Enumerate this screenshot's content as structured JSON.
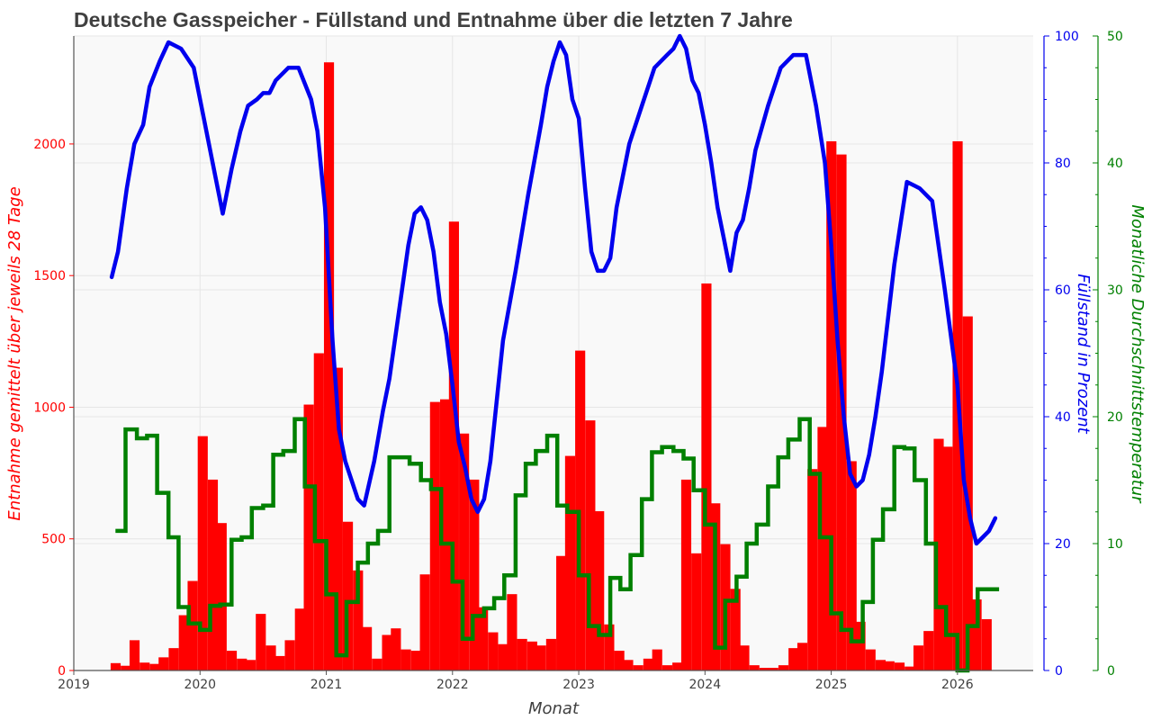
{
  "chart_data": {
    "type": "bar+line",
    "title": "Deutsche Gasspeicher - Füllstand und Entnahme über die letzten 7 Jahre",
    "xlabel": "Monat",
    "ylabel_left": "Entnahme gemittelt über jeweils 28 Tage",
    "ylabel_right1": "Füllstand in Prozent",
    "ylabel_right2": "Monatliche Durchschnittstemperatur",
    "xlim": [
      2019.0,
      2026.6
    ],
    "x_ticks": [
      "2019",
      "2020",
      "2021",
      "2022",
      "2023",
      "2024",
      "2025",
      "2026"
    ],
    "ylim_left": [
      0,
      2410
    ],
    "y_ticks_left": [
      "0",
      "500",
      "1000",
      "1500",
      "2000"
    ],
    "ylim_right1": [
      0,
      100
    ],
    "y_ticks_right1": [
      "0",
      "20",
      "40",
      "60",
      "80",
      "100"
    ],
    "ylim_right2": [
      0,
      50
    ],
    "y_ticks_right2": [
      "0",
      "10",
      "20",
      "30",
      "40",
      "50"
    ],
    "grid": true,
    "colors": {
      "entnahme": "#ff0000",
      "fuellstand": "#0000ee",
      "temperatur": "#008000",
      "plot_bg": "#f9f9f9",
      "title": "#404040"
    },
    "series": [
      {
        "kind": "bar",
        "axis": "left",
        "bar_width_years": 0.0767,
        "x": [
          2019.33,
          2019.41,
          2019.48,
          2019.56,
          2019.64,
          2019.71,
          2019.79,
          2019.87,
          2019.94,
          2020.02,
          2020.1,
          2020.17,
          2020.25,
          2020.33,
          2020.4,
          2020.48,
          2020.56,
          2020.63,
          2020.71,
          2020.79,
          2020.86,
          2020.94,
          2021.02,
          2021.09,
          2021.17,
          2021.25,
          2021.32,
          2021.4,
          2021.48,
          2021.55,
          2021.63,
          2021.71,
          2021.78,
          2021.86,
          2021.94,
          2022.01,
          2022.09,
          2022.17,
          2022.24,
          2022.32,
          2022.4,
          2022.47,
          2022.55,
          2022.63,
          2022.7,
          2022.78,
          2022.86,
          2022.93,
          2023.01,
          2023.09,
          2023.16,
          2023.24,
          2023.32,
          2023.39,
          2023.47,
          2023.55,
          2023.62,
          2023.7,
          2023.78,
          2023.85,
          2023.93,
          2024.01,
          2024.08,
          2024.16,
          2024.24,
          2024.31,
          2024.39,
          2024.47,
          2024.54,
          2024.62,
          2024.7,
          2024.77,
          2024.85,
          2024.93,
          2025.0,
          2025.08,
          2025.16,
          2025.23,
          2025.31,
          2025.39,
          2025.46,
          2025.54,
          2025.62,
          2025.69,
          2025.77,
          2025.85,
          2025.92,
          2026.0,
          2026.08,
          2026.15,
          2026.23
        ],
        "values": [
          28,
          18,
          115,
          30,
          25,
          50,
          85,
          210,
          340,
          890,
          725,
          560,
          75,
          45,
          40,
          215,
          95,
          55,
          115,
          235,
          1010,
          1205,
          2310,
          1150,
          565,
          380,
          165,
          45,
          135,
          160,
          80,
          75,
          365,
          1020,
          1030,
          1705,
          900,
          725,
          240,
          145,
          100,
          290,
          120,
          110,
          95,
          120,
          435,
          815,
          1215,
          950,
          605,
          175,
          75,
          40,
          20,
          45,
          80,
          20,
          30,
          725,
          445,
          1470,
          635,
          480,
          310,
          95,
          20,
          10,
          10,
          20,
          85,
          105,
          765,
          925,
          2010,
          1960,
          795,
          185,
          80,
          40,
          35,
          30,
          15,
          95,
          150,
          880,
          850,
          2010,
          1345,
          270,
          195
        ]
      },
      {
        "kind": "line",
        "name": "Füllstand",
        "axis": "right1",
        "x": [
          2019.3,
          2019.35,
          2019.42,
          2019.48,
          2019.55,
          2019.6,
          2019.68,
          2019.75,
          2019.85,
          2019.95,
          2020.03,
          2020.1,
          2020.18,
          2020.25,
          2020.32,
          2020.38,
          2020.45,
          2020.5,
          2020.55,
          2020.6,
          2020.7,
          2020.78,
          2020.88,
          2020.93,
          2020.99,
          2021.05,
          2021.1,
          2021.15,
          2021.2,
          2021.25,
          2021.3,
          2021.38,
          2021.45,
          2021.5,
          2021.55,
          2021.6,
          2021.65,
          2021.7,
          2021.75,
          2021.8,
          2021.85,
          2021.9,
          2021.95,
          2022.0,
          2022.05,
          2022.1,
          2022.15,
          2022.2,
          2022.25,
          2022.3,
          2022.4,
          2022.5,
          2022.6,
          2022.7,
          2022.75,
          2022.8,
          2022.85,
          2022.9,
          2022.95,
          2023.0,
          2023.05,
          2023.1,
          2023.15,
          2023.2,
          2023.25,
          2023.3,
          2023.4,
          2023.5,
          2023.6,
          2023.7,
          2023.75,
          2023.8,
          2023.85,
          2023.9,
          2023.95,
          2024.0,
          2024.05,
          2024.1,
          2024.15,
          2024.2,
          2024.25,
          2024.3,
          2024.35,
          2024.4,
          2024.5,
          2024.6,
          2024.7,
          2024.8,
          2024.88,
          2024.95,
          2025.0,
          2025.05,
          2025.1,
          2025.15,
          2025.2,
          2025.25,
          2025.3,
          2025.35,
          2025.4,
          2025.5,
          2025.6,
          2025.7,
          2025.8,
          2025.9,
          2026.0,
          2026.05,
          2026.1,
          2026.15,
          2026.2,
          2026.25,
          2026.3
        ],
        "values": [
          62,
          66,
          76,
          83,
          86,
          92,
          96,
          99,
          98,
          95,
          87,
          80,
          72,
          79,
          85,
          89,
          90,
          91,
          91,
          93,
          95,
          95,
          90,
          85,
          73,
          52,
          38,
          33,
          30,
          27,
          26,
          33,
          41,
          46,
          53,
          60,
          67,
          72,
          73,
          71,
          66,
          58,
          53,
          45,
          36,
          32,
          27,
          25,
          27,
          33,
          52,
          63,
          75,
          86,
          92,
          96,
          99,
          97,
          90,
          87,
          76,
          66,
          63,
          63,
          65,
          73,
          83,
          89,
          95,
          97,
          98,
          100,
          98,
          93,
          91,
          86,
          80,
          73,
          68,
          63,
          69,
          71,
          76,
          82,
          89,
          95,
          97,
          97,
          89,
          80,
          67,
          52,
          40,
          31,
          29,
          30,
          34,
          40,
          47,
          64,
          77,
          76,
          74,
          60,
          45,
          30,
          24,
          20,
          21,
          22,
          24
        ]
      },
      {
        "kind": "step",
        "name": "Temperatur",
        "axis": "right2",
        "x": [
          2019.33,
          2019.41,
          2019.5,
          2019.58,
          2019.66,
          2019.75,
          2019.83,
          2019.91,
          2020.0,
          2020.08,
          2020.16,
          2020.25,
          2020.33,
          2020.41,
          2020.5,
          2020.58,
          2020.66,
          2020.75,
          2020.83,
          2020.91,
          2021.0,
          2021.08,
          2021.16,
          2021.25,
          2021.33,
          2021.41,
          2021.5,
          2021.58,
          2021.66,
          2021.75,
          2021.83,
          2021.91,
          2022.0,
          2022.08,
          2022.16,
          2022.25,
          2022.33,
          2022.41,
          2022.5,
          2022.58,
          2022.66,
          2022.75,
          2022.83,
          2022.91,
          2023.0,
          2023.08,
          2023.16,
          2023.25,
          2023.33,
          2023.41,
          2023.5,
          2023.58,
          2023.66,
          2023.75,
          2023.83,
          2023.91,
          2024.0,
          2024.08,
          2024.16,
          2024.25,
          2024.33,
          2024.41,
          2024.5,
          2024.58,
          2024.66,
          2024.75,
          2024.83,
          2024.91,
          2025.0,
          2025.08,
          2025.16,
          2025.25,
          2025.33,
          2025.41,
          2025.5,
          2025.58,
          2025.66,
          2025.75,
          2025.83,
          2025.91,
          2026.0,
          2026.08,
          2026.16,
          2026.25
        ],
        "values": [
          11,
          19,
          18.3,
          18.5,
          14,
          10.5,
          5,
          3.7,
          3.2,
          5.1,
          5.2,
          10.3,
          10.5,
          12.8,
          13,
          17,
          17.3,
          19.8,
          14.5,
          10.2,
          6,
          1.2,
          5.4,
          8.5,
          10,
          11,
          16.8,
          16.8,
          16.3,
          15,
          14.3,
          10,
          7,
          2.5,
          4.3,
          4.9,
          5.7,
          7.5,
          13.8,
          16.3,
          17.3,
          18.5,
          13,
          12.5,
          7.5,
          3.5,
          2.8,
          7.3,
          6.4,
          9.1,
          13.5,
          17.2,
          17.6,
          17.3,
          16.7,
          14.2,
          11.5,
          1.8,
          5.5,
          7.4,
          10,
          11.5,
          14.5,
          16.8,
          18.2,
          19.8,
          15.5,
          10.5,
          4.5,
          3.2,
          2.3,
          5.4,
          10.3,
          12.7,
          17.6,
          17.5,
          15,
          10,
          5,
          2.8,
          0,
          3.5,
          6.4,
          6.4
        ]
      }
    ]
  }
}
